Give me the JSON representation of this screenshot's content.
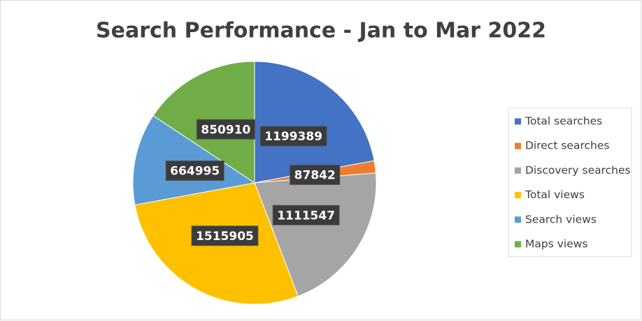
{
  "chart_data": {
    "type": "pie",
    "title": "Search Performance - Jan to Mar 2022",
    "categories": [
      "Total searches",
      "Direct searches",
      "Discovery searches",
      "Total views",
      "Search views",
      "Maps views"
    ],
    "values": [
      1199389,
      87842,
      1111547,
      1515905,
      664995,
      850910
    ],
    "colors": [
      "#4472c4",
      "#ed7d31",
      "#a5a5a5",
      "#ffc000",
      "#5b9bd5",
      "#70ad47"
    ],
    "legend": "right"
  }
}
